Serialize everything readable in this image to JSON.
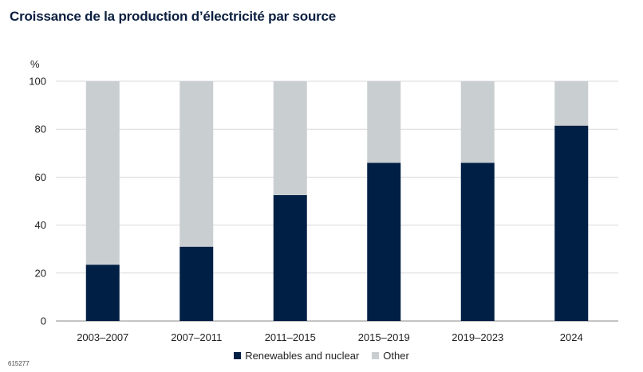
{
  "chart_data": {
    "type": "bar",
    "stacked": true,
    "title": "Croissance de la production d’électricité par source",
    "ylabel": "%",
    "xlabel": "",
    "ylim": [
      0,
      100
    ],
    "yticks": [
      0,
      20,
      40,
      60,
      80,
      100
    ],
    "grid": true,
    "legend_position": "bottom",
    "categories": [
      "2003–2007",
      "2007–2011",
      "2011–2015",
      "2015–2019",
      "2019–2023",
      "2024"
    ],
    "series": [
      {
        "name": "Renewables and nuclear",
        "color": "#001f45",
        "values": [
          23.5,
          31,
          52.5,
          66,
          66,
          81.5
        ]
      },
      {
        "name": "Other",
        "color": "#c9ced1",
        "values": [
          76.5,
          69,
          47.5,
          34,
          34,
          18.5
        ]
      }
    ]
  },
  "footer": {
    "id": "615277"
  }
}
